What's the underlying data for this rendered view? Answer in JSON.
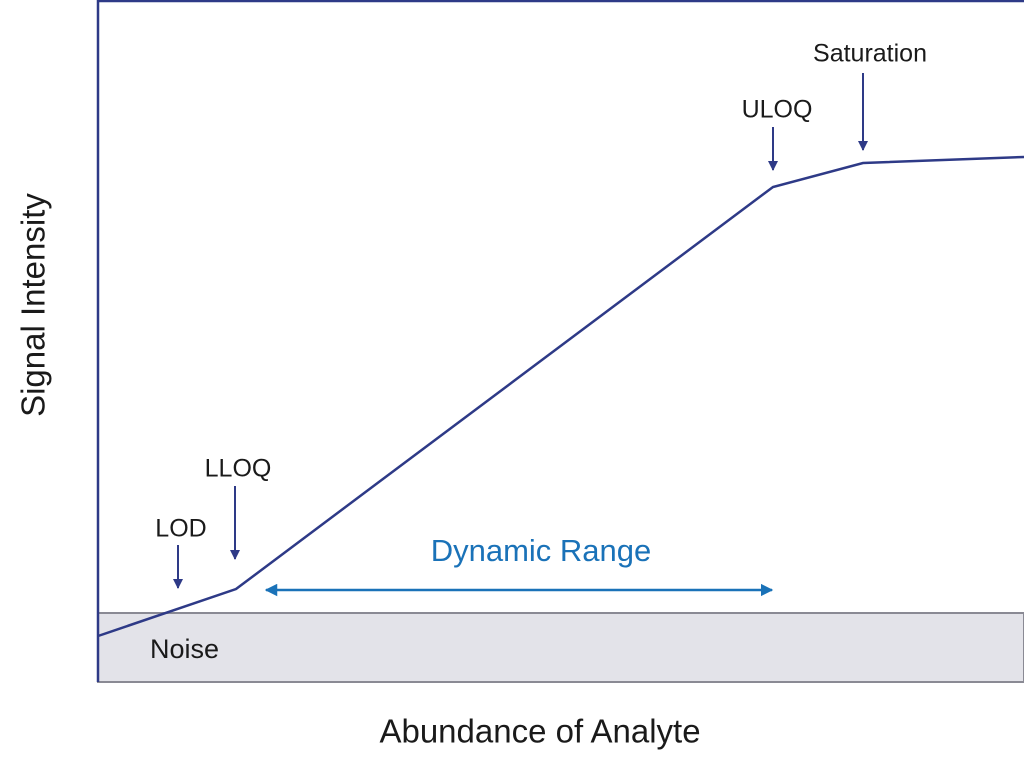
{
  "diagram": {
    "y_axis_label": "Signal Intensity",
    "x_axis_label": "Abundance of Analyte",
    "labels": {
      "lod": "LOD",
      "lloq": "LLOQ",
      "uloq": "ULOQ",
      "saturation": "Saturation",
      "dynamic_range": "Dynamic Range",
      "noise": "Noise"
    }
  }
}
